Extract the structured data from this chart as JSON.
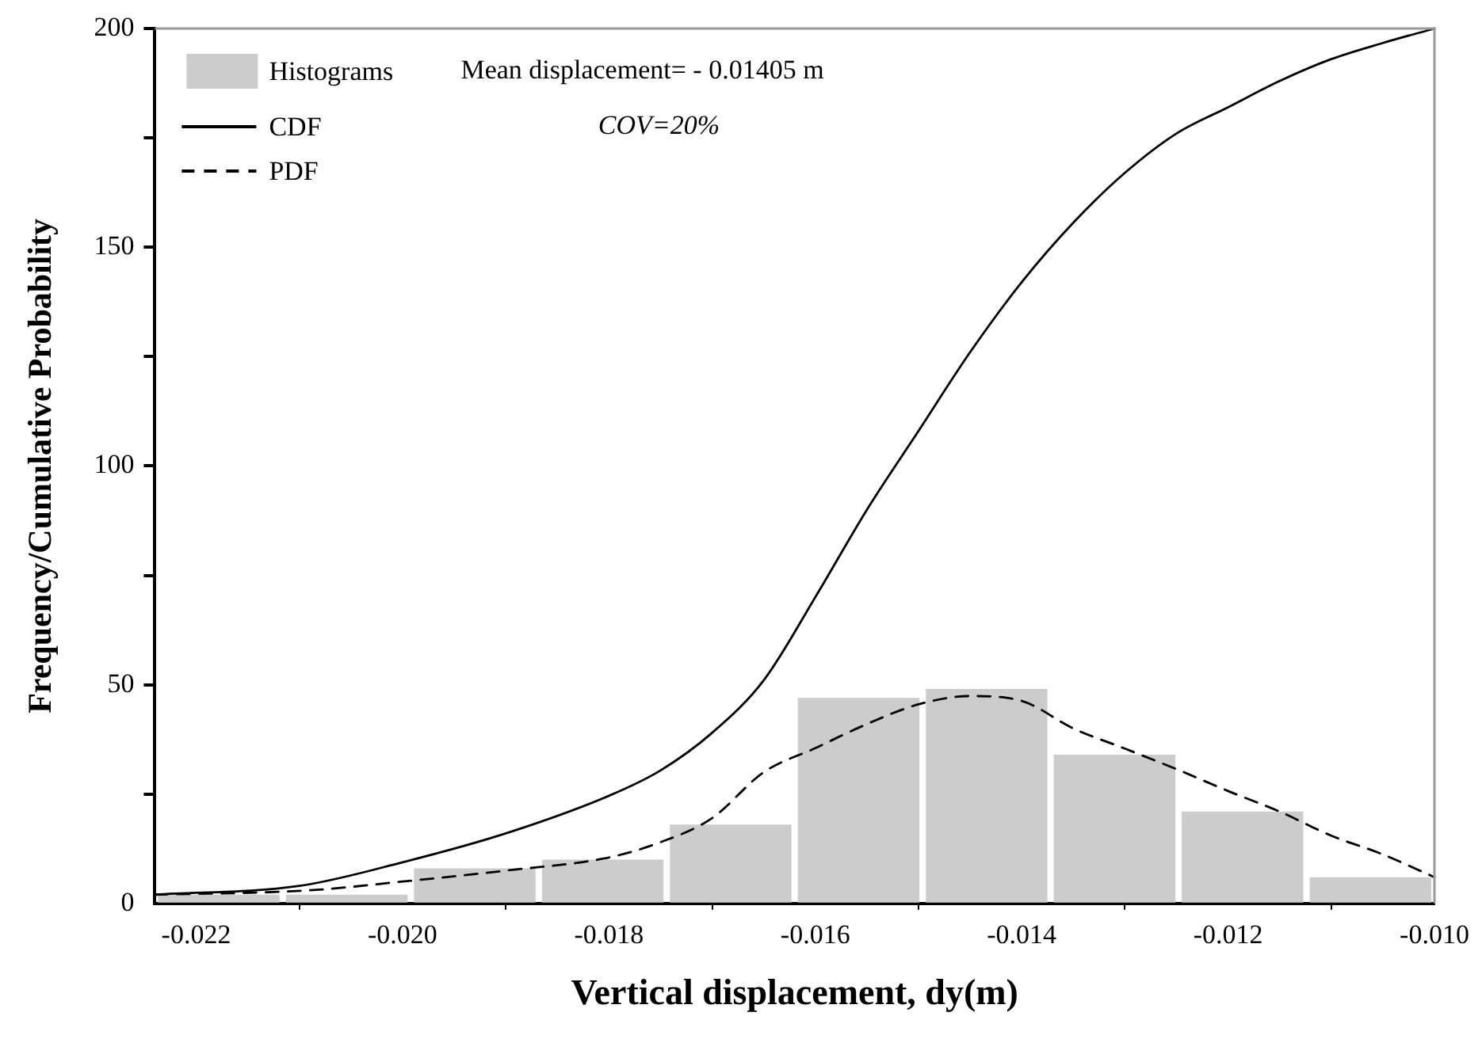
{
  "chart_data": {
    "type": "histogram",
    "xlabel": "Vertical displacement, dy(m)",
    "ylabel": "Frequency/Cumulative Probability",
    "annotations": [
      "Mean displacement= - 0.01405 m",
      "COV=20%"
    ],
    "bins": [
      -0.0224,
      -0.02116,
      -0.01992,
      -0.01868,
      -0.01744,
      -0.0162,
      -0.01496,
      -0.01372,
      -0.01248,
      -0.01124,
      -0.01
    ],
    "series": [
      {
        "name": "Histograms",
        "color": "#cccccc",
        "values": [
          2,
          2,
          8,
          10,
          18,
          47,
          49,
          34,
          21,
          6
        ]
      },
      {
        "name": "CDF",
        "type": "line",
        "color": "#000000",
        "line_style": "solid",
        "x": [
          -0.0224,
          -0.021,
          -0.02,
          -0.019,
          -0.018,
          -0.0175,
          -0.017,
          -0.0165,
          -0.016,
          -0.0155,
          -0.015,
          -0.0145,
          -0.014,
          -0.0135,
          -0.013,
          -0.0125,
          -0.012,
          -0.0115,
          -0.011,
          -0.0105,
          -0.01
        ],
        "values": [
          2,
          4,
          9.4,
          16,
          24.6,
          30.4,
          39,
          51,
          70,
          90,
          108,
          126,
          142,
          155.6,
          167,
          176,
          182,
          188,
          193,
          196.7,
          200
        ]
      },
      {
        "name": "PDF",
        "type": "line",
        "color": "#000000",
        "line_style": "dashed",
        "x": [
          -0.0224,
          -0.0209,
          -0.02,
          -0.019,
          -0.018,
          -0.0175,
          -0.017,
          -0.0165,
          -0.016,
          -0.0155,
          -0.015,
          -0.0145,
          -0.014,
          -0.0135,
          -0.013,
          -0.0125,
          -0.012,
          -0.0115,
          -0.011,
          -0.0105,
          -0.01
        ],
        "values": [
          2,
          3,
          5,
          7.5,
          10.5,
          14,
          19.5,
          30,
          35.5,
          41,
          45.5,
          47.4,
          46.3,
          40,
          35.4,
          30.7,
          25.7,
          21,
          15.5,
          11.2,
          6
        ]
      }
    ],
    "xlim": [
      -0.0224,
      -0.01
    ],
    "xticks": [
      {
        "value": -0.022,
        "label": "-0.022"
      },
      {
        "value": -0.02,
        "label": "-0.020"
      },
      {
        "value": -0.018,
        "label": "-0.018"
      },
      {
        "value": -0.016,
        "label": "-0.016"
      },
      {
        "value": -0.014,
        "label": "-0.014"
      },
      {
        "value": -0.012,
        "label": "-0.012"
      },
      {
        "value": -0.01,
        "label": "-0.010"
      }
    ],
    "ylim": [
      0,
      200
    ],
    "yticks": [
      0,
      {
        "value": 25,
        "label": null
      },
      50,
      {
        "value": 75,
        "label": null
      },
      100,
      {
        "value": 125,
        "label": null
      },
      150,
      {
        "value": 175,
        "label": null
      },
      200
    ],
    "grid": false,
    "legend": "top left",
    "marker": "none"
  }
}
